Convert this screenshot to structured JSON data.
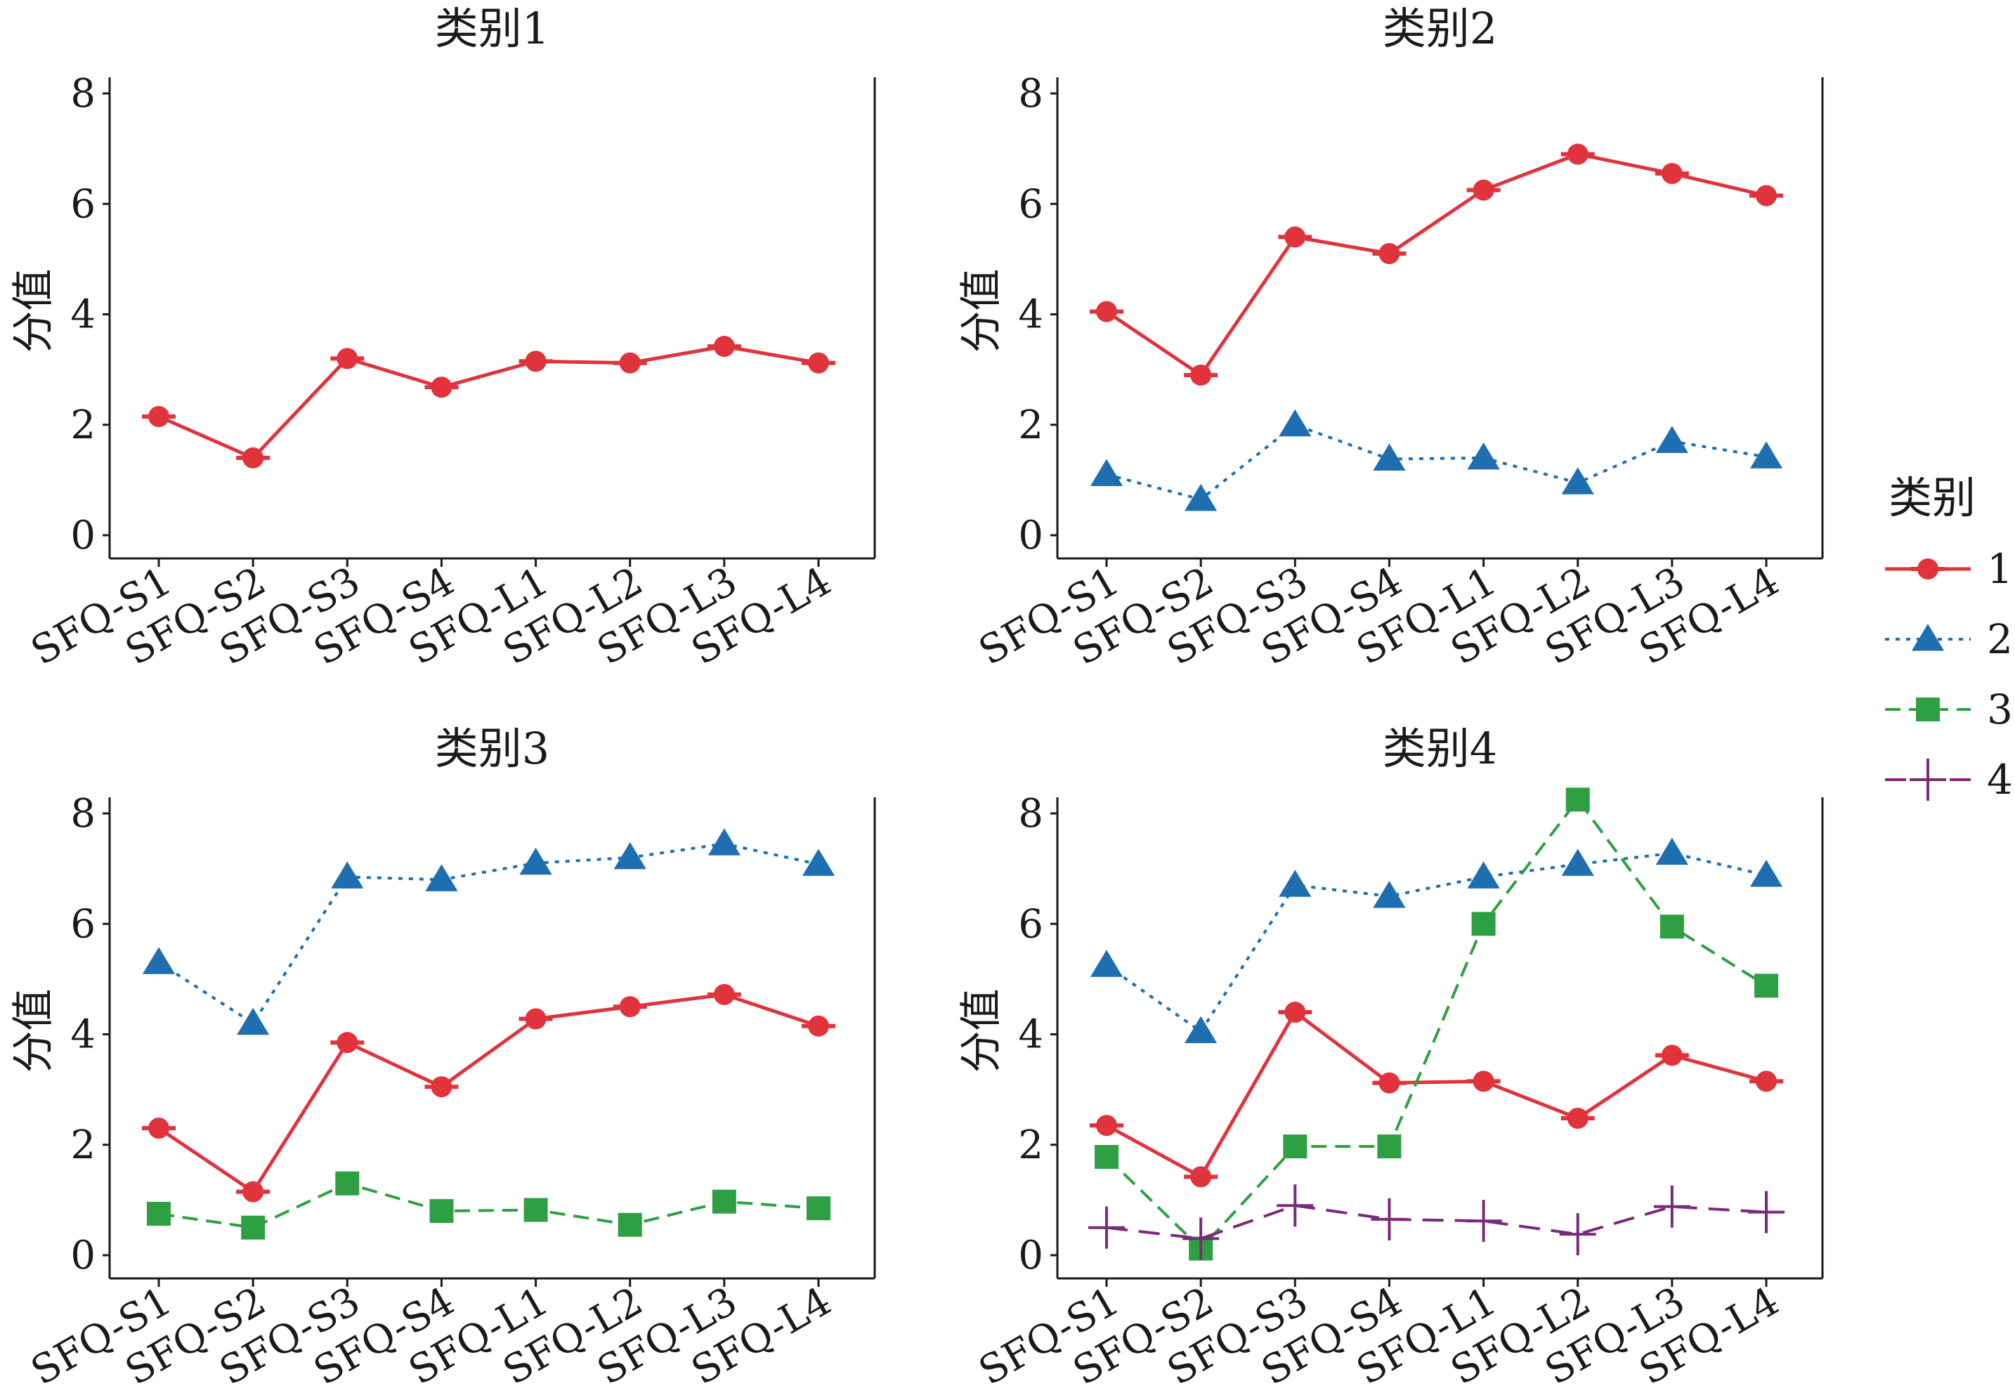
{
  "chart_data": [
    {
      "type": "line",
      "title": "类别1",
      "ylabel": "分值",
      "xlabel": "",
      "categories": [
        "SFQ-S1",
        "SFQ-S2",
        "SFQ-S3",
        "SFQ-S4",
        "SFQ-L1",
        "SFQ-L2",
        "SFQ-L3",
        "SFQ-L4"
      ],
      "yticks": [
        "0",
        "2",
        "4",
        "6",
        "8"
      ],
      "ylim": [
        0,
        8
      ],
      "grid": false,
      "series": [
        {
          "name": "1",
          "values": [
            2.15,
            1.4,
            3.2,
            2.68,
            3.15,
            3.12,
            3.42,
            3.12
          ]
        }
      ]
    },
    {
      "type": "line",
      "title": "类别2",
      "ylabel": "分值",
      "xlabel": "",
      "categories": [
        "SFQ-S1",
        "SFQ-S2",
        "SFQ-S3",
        "SFQ-S4",
        "SFQ-L1",
        "SFQ-L2",
        "SFQ-L3",
        "SFQ-L4"
      ],
      "yticks": [
        "0",
        "2",
        "4",
        "6",
        "8"
      ],
      "ylim": [
        0,
        8
      ],
      "grid": false,
      "series": [
        {
          "name": "1",
          "values": [
            4.05,
            2.9,
            5.4,
            5.1,
            6.25,
            6.9,
            6.55,
            6.15
          ]
        },
        {
          "name": "2",
          "values": [
            1.1,
            0.65,
            2.0,
            1.38,
            1.4,
            0.95,
            1.7,
            1.42
          ]
        }
      ]
    },
    {
      "type": "line",
      "title": "类别3",
      "ylabel": "分值",
      "xlabel": "",
      "categories": [
        "SFQ-S1",
        "SFQ-S2",
        "SFQ-S3",
        "SFQ-S4",
        "SFQ-L1",
        "SFQ-L2",
        "SFQ-L3",
        "SFQ-L4"
      ],
      "yticks": [
        "0",
        "2",
        "4",
        "6",
        "8"
      ],
      "ylim": [
        0,
        8
      ],
      "grid": false,
      "series": [
        {
          "name": "1",
          "values": [
            2.3,
            1.15,
            3.85,
            3.05,
            4.28,
            4.5,
            4.72,
            4.15
          ]
        },
        {
          "name": "2",
          "values": [
            5.3,
            4.2,
            6.85,
            6.8,
            7.1,
            7.2,
            7.45,
            7.08
          ]
        },
        {
          "name": "3",
          "values": [
            0.75,
            0.5,
            1.3,
            0.8,
            0.82,
            0.55,
            0.97,
            0.85
          ]
        }
      ]
    },
    {
      "type": "line",
      "title": "类别4",
      "ylabel": "分值",
      "xlabel": "",
      "categories": [
        "SFQ-S1",
        "SFQ-S2",
        "SFQ-S3",
        "SFQ-S4",
        "SFQ-L1",
        "SFQ-L2",
        "SFQ-L3",
        "SFQ-L4"
      ],
      "yticks": [
        "0",
        "2",
        "4",
        "6",
        "8"
      ],
      "ylim": [
        0,
        8
      ],
      "grid": false,
      "series": [
        {
          "name": "1",
          "values": [
            2.35,
            1.42,
            4.4,
            3.12,
            3.15,
            2.48,
            3.62,
            3.15
          ]
        },
        {
          "name": "2",
          "values": [
            5.25,
            4.05,
            6.7,
            6.5,
            6.85,
            7.08,
            7.28,
            6.88
          ]
        },
        {
          "name": "3",
          "values": [
            1.78,
            0.12,
            1.97,
            1.97,
            6.0,
            8.25,
            5.95,
            4.88
          ]
        },
        {
          "name": "4",
          "values": [
            0.5,
            0.3,
            0.9,
            0.65,
            0.62,
            0.38,
            0.88,
            0.78
          ]
        }
      ]
    }
  ],
  "legend": {
    "title": "类别",
    "position": "right",
    "items": [
      {
        "label": "1",
        "color": "#e0333c",
        "marker": "diamond-circle",
        "dash": "solid"
      },
      {
        "label": "2",
        "color": "#1f6fb0",
        "marker": "triangle",
        "dash": "dotted"
      },
      {
        "label": "3",
        "color": "#2ea043",
        "marker": "square",
        "dash": "dashed"
      },
      {
        "label": "4",
        "color": "#7b2a7a",
        "marker": "plus",
        "dash": "longdash"
      }
    ]
  }
}
